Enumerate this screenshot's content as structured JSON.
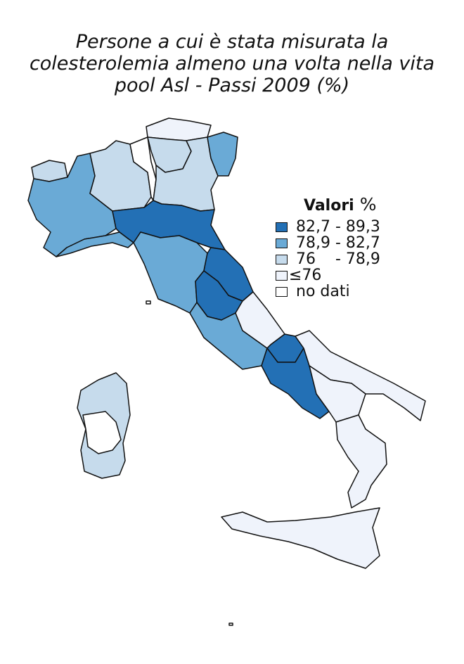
{
  "title": {
    "line1": "Persone a cui è stata misurata la",
    "line2": "colesterolemia almeno una volta nella vita",
    "line3": "pool Asl - Passi 2009 (%)"
  },
  "legend": {
    "title": "Valori",
    "unit": "%",
    "items": [
      {
        "label": "82,7 - 89,3",
        "color": "#2370b5"
      },
      {
        "label": "78,9 - 82,7",
        "color": "#6aaad6"
      },
      {
        "label": "76    - 78,9",
        "color": "#c6dbec"
      },
      {
        "label": "≤76",
        "color": "#eff3fb"
      },
      {
        "label": "no dati",
        "color": "#ffffff"
      }
    ]
  },
  "regions": [
    {
      "name": "Valle d'Aosta",
      "class": "76 - 78,9"
    },
    {
      "name": "Piemonte",
      "class": "78,9 - 82,7"
    },
    {
      "name": "Liguria",
      "class": "78,9 - 82,7"
    },
    {
      "name": "Lombardia",
      "class": "76 - 78,9"
    },
    {
      "name": "Alto Adige",
      "class": "≤76"
    },
    {
      "name": "Trentino",
      "class": "76 - 78,9"
    },
    {
      "name": "Veneto",
      "class": "76 - 78,9"
    },
    {
      "name": "Friuli Venezia Giulia",
      "class": "78,9 - 82,7"
    },
    {
      "name": "Emilia-Romagna",
      "class": "82,7 - 89,3"
    },
    {
      "name": "Toscana",
      "class": "78,9 - 82,7"
    },
    {
      "name": "Marche",
      "class": "82,7 - 89,3"
    },
    {
      "name": "Umbria",
      "class": "82,7 - 89,3"
    },
    {
      "name": "Lazio",
      "class": "78,9 - 82,7"
    },
    {
      "name": "Abruzzo",
      "class": "≤76"
    },
    {
      "name": "Molise",
      "class": "82,7 - 89,3"
    },
    {
      "name": "Campania",
      "class": "82,7 - 89,3"
    },
    {
      "name": "Puglia",
      "class": "≤76"
    },
    {
      "name": "Basilicata",
      "class": "≤76"
    },
    {
      "name": "Calabria",
      "class": "≤76"
    },
    {
      "name": "Sicilia",
      "class": "≤76"
    },
    {
      "name": "Sardegna",
      "class": "76 - 78,9"
    }
  ]
}
